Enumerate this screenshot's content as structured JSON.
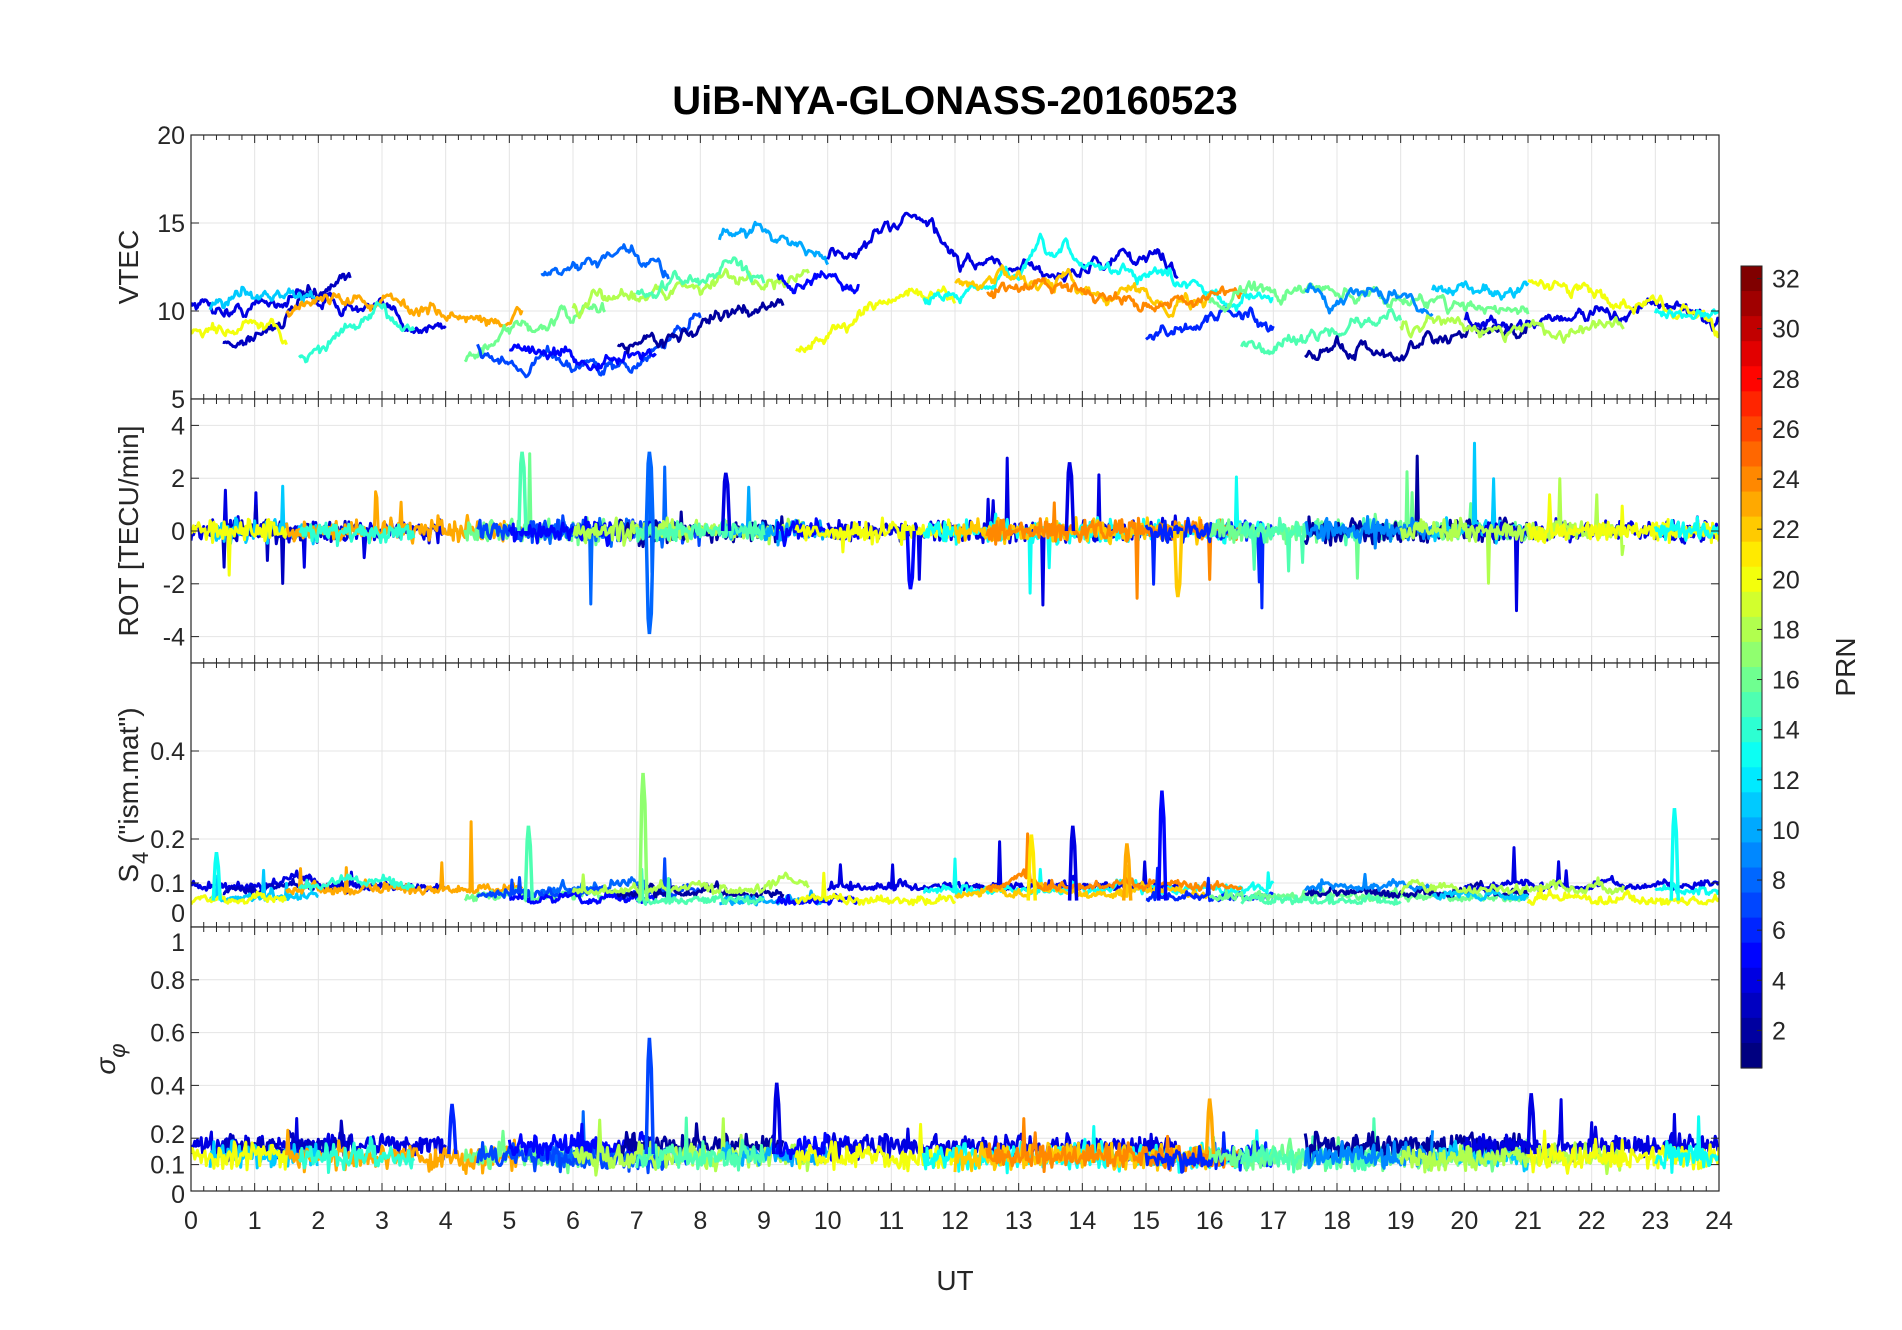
{
  "chart_data": {
    "type": "line",
    "title": "UiB-NYA-GLONASS-20160523",
    "xlabel": "UT",
    "xlim": [
      0,
      24
    ],
    "xticks": [
      0,
      1,
      2,
      3,
      4,
      5,
      6,
      7,
      8,
      9,
      10,
      11,
      12,
      13,
      14,
      15,
      16,
      17,
      18,
      19,
      20,
      21,
      22,
      23,
      24
    ],
    "grid": true,
    "colorbar": {
      "label": "PRN",
      "range": [
        1,
        32
      ],
      "ticks": [
        2,
        4,
        6,
        8,
        10,
        12,
        14,
        16,
        18,
        20,
        22,
        24,
        26,
        28,
        30,
        32
      ],
      "colormap": "jet"
    },
    "panels": [
      {
        "key": "vtec",
        "ylabel": "VTEC",
        "ylim": [
          5,
          20
        ],
        "yticks": [
          5,
          10,
          15,
          20
        ]
      },
      {
        "key": "rot",
        "ylabel": "ROT [TECU/min]",
        "ylim": [
          -5,
          5
        ],
        "yticks": [
          -4,
          -2,
          0,
          2,
          4
        ]
      },
      {
        "key": "s4",
        "ylabel": "S",
        "ylabel_sub": "4",
        "ylabel_suffix": " (\"ism.mat\")",
        "ylim": [
          0,
          0.6
        ],
        "yticks": [
          0,
          0.1,
          0.2,
          0.4
        ]
      },
      {
        "key": "sigma",
        "ylabel": "σ",
        "ylabel_sub": "φ",
        "ylim": [
          0,
          1
        ],
        "yticks": [
          0,
          0.1,
          0.2,
          0.4,
          0.6,
          0.8,
          1
        ]
      }
    ],
    "arcs": [
      {
        "prn": 4,
        "start": 0,
        "end": 4,
        "vtec": [
          10.5,
          10,
          11,
          10.5,
          9.5,
          9
        ]
      },
      {
        "prn": 3,
        "start": 0.5,
        "end": 2.5,
        "vtec": [
          8,
          9,
          10.5,
          11.5
        ]
      },
      {
        "prn": 11,
        "start": 0.3,
        "end": 2,
        "vtec": [
          10,
          11.3,
          11,
          10.5
        ]
      },
      {
        "prn": 20,
        "start": 0,
        "end": 1.5,
        "vtec": [
          9,
          9,
          9.2,
          8
        ]
      },
      {
        "prn": 23,
        "start": 1.5,
        "end": 5.2,
        "vtec": [
          10,
          11,
          10.5,
          10,
          9.5,
          9.5
        ]
      },
      {
        "prn": 14,
        "start": 1.7,
        "end": 3.5,
        "vtec": [
          7.5,
          8.5,
          9.5,
          9.5
        ]
      },
      {
        "prn": 16,
        "start": 4.3,
        "end": 6.5,
        "vtec": [
          7,
          8.5,
          9.5,
          10
        ]
      },
      {
        "prn": 8,
        "start": 5.5,
        "end": 7.5,
        "vtec": [
          12,
          12.5,
          13,
          12
        ]
      },
      {
        "prn": 7,
        "start": 4.5,
        "end": 8,
        "vtec": [
          8,
          7,
          7.5,
          7,
          6.5,
          8,
          10
        ]
      },
      {
        "prn": 5,
        "start": 5,
        "end": 7.3,
        "vtec": [
          8,
          7.5,
          7,
          7.5
        ]
      },
      {
        "prn": 2,
        "start": 6.7,
        "end": 9.3,
        "vtec": [
          8,
          8.5,
          9,
          10,
          10.5
        ]
      },
      {
        "prn": 18,
        "start": 6,
        "end": 9.7,
        "vtec": [
          10,
          11,
          11.5,
          12,
          12
        ]
      },
      {
        "prn": 10,
        "start": 8.3,
        "end": 10,
        "vtec": [
          14,
          15,
          14,
          12.5
        ]
      },
      {
        "prn": 15,
        "start": 7,
        "end": 9,
        "vtec": [
          11,
          11.5,
          12.5,
          12
        ]
      },
      {
        "prn": 5,
        "start": 9.2,
        "end": 10.5,
        "vtec": [
          12,
          12,
          11.5,
          11.5
        ]
      },
      {
        "prn": 4,
        "start": 10,
        "end": 15.5,
        "vtec": [
          13,
          14,
          15.5,
          12.5,
          12.5,
          12,
          12.5,
          13.5,
          12.5
        ]
      },
      {
        "prn": 20,
        "start": 9.5,
        "end": 12,
        "vtec": [
          8,
          9,
          10,
          11,
          10.5
        ]
      },
      {
        "prn": 13,
        "start": 11.5,
        "end": 17,
        "vtec": [
          11,
          11,
          13,
          12.5,
          12,
          11,
          10.5
        ]
      },
      {
        "prn": 22,
        "start": 12,
        "end": 16,
        "vtec": [
          11.5,
          12,
          11.5,
          10.8,
          10.8
        ]
      },
      {
        "prn": 24,
        "start": 12.5,
        "end": 16.5,
        "vtec": [
          11,
          11.5,
          11,
          10.5,
          10.5
        ]
      },
      {
        "prn": 6,
        "start": 15,
        "end": 17,
        "vtec": [
          8.5,
          9,
          10,
          9.5
        ]
      },
      {
        "prn": 16,
        "start": 16,
        "end": 21,
        "vtec": [
          10.5,
          11,
          11,
          10.5,
          10
        ]
      },
      {
        "prn": 15,
        "start": 16.5,
        "end": 19,
        "vtec": [
          8,
          8.5,
          9,
          9.5
        ]
      },
      {
        "prn": 2,
        "start": 17.5,
        "end": 21,
        "vtec": [
          7.5,
          8,
          7.5,
          8.5,
          9
        ]
      },
      {
        "prn": 9,
        "start": 17.5,
        "end": 19.5,
        "vtec": [
          11,
          10.5,
          11,
          10
        ]
      },
      {
        "prn": 11,
        "start": 19.5,
        "end": 21,
        "vtec": [
          11,
          11.5,
          11
        ]
      },
      {
        "prn": 4,
        "start": 20,
        "end": 24,
        "vtec": [
          9.5,
          9.5,
          10,
          10,
          9.5
        ]
      },
      {
        "prn": 18,
        "start": 19,
        "end": 22.5,
        "vtec": [
          9,
          9.5,
          9,
          9
        ]
      },
      {
        "prn": 20,
        "start": 21,
        "end": 24,
        "vtec": [
          11.5,
          11,
          10.5,
          9
        ]
      },
      {
        "prn": 13,
        "start": 23,
        "end": 24,
        "vtec": [
          10,
          9.5
        ]
      }
    ],
    "rot_spikes": [
      {
        "t": 7.2,
        "prn": 8,
        "v": -3.9
      },
      {
        "t": 7.2,
        "prn": 8,
        "v": 3.0
      },
      {
        "t": 5.2,
        "prn": 15,
        "v": 3.0
      },
      {
        "t": 13.8,
        "prn": 4,
        "v": 2.6
      },
      {
        "t": 15.5,
        "prn": 22,
        "v": -2.5
      },
      {
        "t": 11.3,
        "prn": 5,
        "v": -2.2
      },
      {
        "t": 8.4,
        "prn": 4,
        "v": 2.2
      }
    ],
    "s4_spikes": [
      {
        "t": 7.1,
        "prn": 17,
        "v": 0.35
      },
      {
        "t": 15.25,
        "prn": 5,
        "v": 0.31
      },
      {
        "t": 23.3,
        "prn": 13,
        "v": 0.27
      },
      {
        "t": 5.3,
        "prn": 15,
        "v": 0.23
      },
      {
        "t": 13.85,
        "prn": 4,
        "v": 0.23
      },
      {
        "t": 13.2,
        "prn": 21,
        "v": 0.21
      },
      {
        "t": 14.7,
        "prn": 23,
        "v": 0.19
      },
      {
        "t": 0.4,
        "prn": 13,
        "v": 0.17
      }
    ],
    "sigma_spikes": [
      {
        "t": 7.2,
        "prn": 7,
        "v": 0.58
      },
      {
        "t": 9.2,
        "prn": 4,
        "v": 0.41
      },
      {
        "t": 16,
        "prn": 23,
        "v": 0.35
      },
      {
        "t": 21.05,
        "prn": 4,
        "v": 0.37
      },
      {
        "t": 4.1,
        "prn": 6,
        "v": 0.33
      }
    ]
  }
}
